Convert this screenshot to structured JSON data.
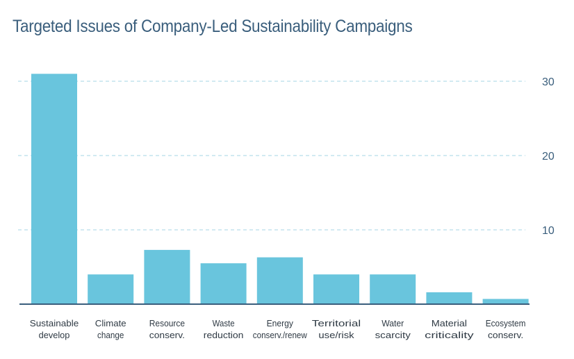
{
  "chart_data": {
    "type": "bar",
    "title": "Targeted Issues of Company-Led Sustainability Campaigns",
    "categories": [
      [
        "Sustainable",
        "develop"
      ],
      [
        "Climate",
        "change"
      ],
      [
        "Resource",
        "conserv."
      ],
      [
        "Waste",
        "reduction"
      ],
      [
        "Energy",
        "conserv./renew"
      ],
      [
        "Territorial",
        "use/risk"
      ],
      [
        "Water",
        "scarcity"
      ],
      [
        "Material",
        "criticality"
      ],
      [
        "Ecosystem",
        "conserv."
      ]
    ],
    "values": [
      31,
      4,
      7.3,
      5.5,
      6.3,
      4,
      4,
      1.6,
      0.7
    ],
    "ylim": [
      0,
      32
    ],
    "yticks": [
      10,
      20,
      30
    ],
    "xlabel": "",
    "ylabel": "",
    "grid": true,
    "colors": {
      "bar": "#69c5dd",
      "grid": "#b6dde9",
      "axis": "#3a5e7c",
      "title": "#3a5e7c"
    }
  }
}
